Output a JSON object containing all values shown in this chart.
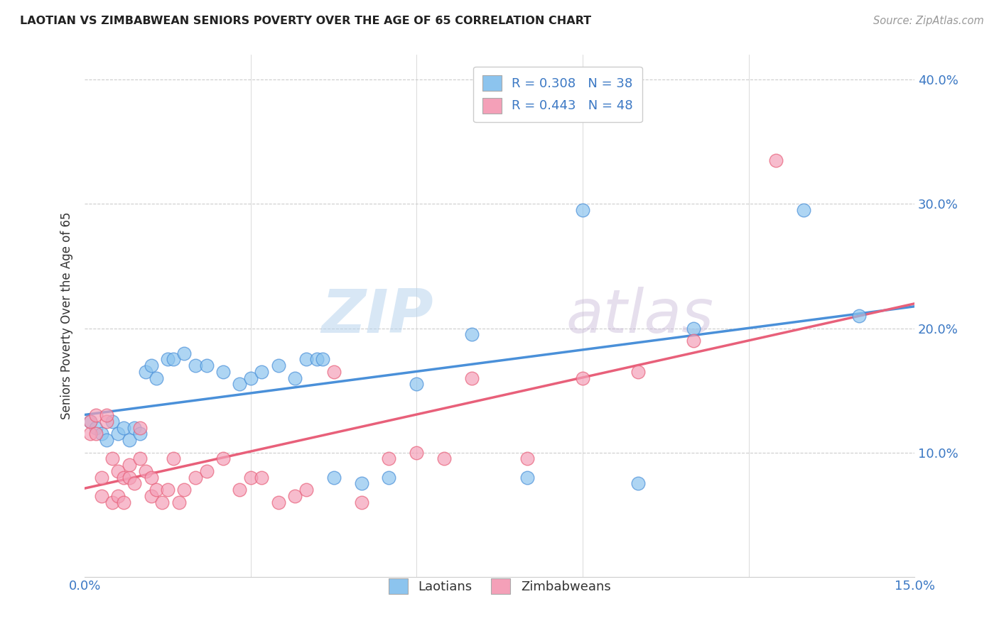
{
  "title": "LAOTIAN VS ZIMBABWEAN SENIORS POVERTY OVER THE AGE OF 65 CORRELATION CHART",
  "source": "Source: ZipAtlas.com",
  "ylabel": "Seniors Poverty Over the Age of 65",
  "xlim": [
    0.0,
    0.15
  ],
  "ylim": [
    0.0,
    0.42
  ],
  "xticks": [
    0.0,
    0.15
  ],
  "yticks": [
    0.0,
    0.1,
    0.2,
    0.3,
    0.4
  ],
  "laotian_color": "#8CC4EE",
  "zimbabwean_color": "#F4A0B8",
  "laotian_line_color": "#4A90D9",
  "zimbabwean_line_color": "#E8607A",
  "R_laotian": 0.308,
  "N_laotian": 38,
  "R_zimbabwean": 0.443,
  "N_zimbabwean": 48,
  "background_color": "#ffffff",
  "grid_color": "#cccccc",
  "watermark_zip": "ZIP",
  "watermark_atlas": "atlas",
  "laotian_x": [
    0.001,
    0.002,
    0.003,
    0.004,
    0.005,
    0.006,
    0.007,
    0.008,
    0.009,
    0.01,
    0.011,
    0.012,
    0.013,
    0.015,
    0.016,
    0.018,
    0.02,
    0.022,
    0.025,
    0.028,
    0.03,
    0.032,
    0.035,
    0.038,
    0.04,
    0.042,
    0.043,
    0.045,
    0.05,
    0.055,
    0.06,
    0.07,
    0.08,
    0.09,
    0.1,
    0.11,
    0.13,
    0.14
  ],
  "laotian_y": [
    0.125,
    0.12,
    0.115,
    0.11,
    0.125,
    0.115,
    0.12,
    0.11,
    0.12,
    0.115,
    0.165,
    0.17,
    0.16,
    0.175,
    0.175,
    0.18,
    0.17,
    0.17,
    0.165,
    0.155,
    0.16,
    0.165,
    0.17,
    0.16,
    0.175,
    0.175,
    0.175,
    0.08,
    0.075,
    0.08,
    0.155,
    0.195,
    0.08,
    0.295,
    0.075,
    0.2,
    0.295,
    0.21
  ],
  "zimbabwean_x": [
    0.001,
    0.001,
    0.002,
    0.002,
    0.003,
    0.003,
    0.004,
    0.004,
    0.005,
    0.005,
    0.006,
    0.006,
    0.007,
    0.007,
    0.008,
    0.008,
    0.009,
    0.01,
    0.01,
    0.011,
    0.012,
    0.012,
    0.013,
    0.014,
    0.015,
    0.016,
    0.017,
    0.018,
    0.02,
    0.022,
    0.025,
    0.028,
    0.03,
    0.032,
    0.035,
    0.038,
    0.04,
    0.045,
    0.05,
    0.055,
    0.06,
    0.065,
    0.07,
    0.08,
    0.09,
    0.1,
    0.11,
    0.125
  ],
  "zimbabwean_y": [
    0.115,
    0.125,
    0.115,
    0.13,
    0.065,
    0.08,
    0.125,
    0.13,
    0.06,
    0.095,
    0.065,
    0.085,
    0.06,
    0.08,
    0.08,
    0.09,
    0.075,
    0.12,
    0.095,
    0.085,
    0.065,
    0.08,
    0.07,
    0.06,
    0.07,
    0.095,
    0.06,
    0.07,
    0.08,
    0.085,
    0.095,
    0.07,
    0.08,
    0.08,
    0.06,
    0.065,
    0.07,
    0.165,
    0.06,
    0.095,
    0.1,
    0.095,
    0.16,
    0.095,
    0.16,
    0.165,
    0.19,
    0.335
  ]
}
